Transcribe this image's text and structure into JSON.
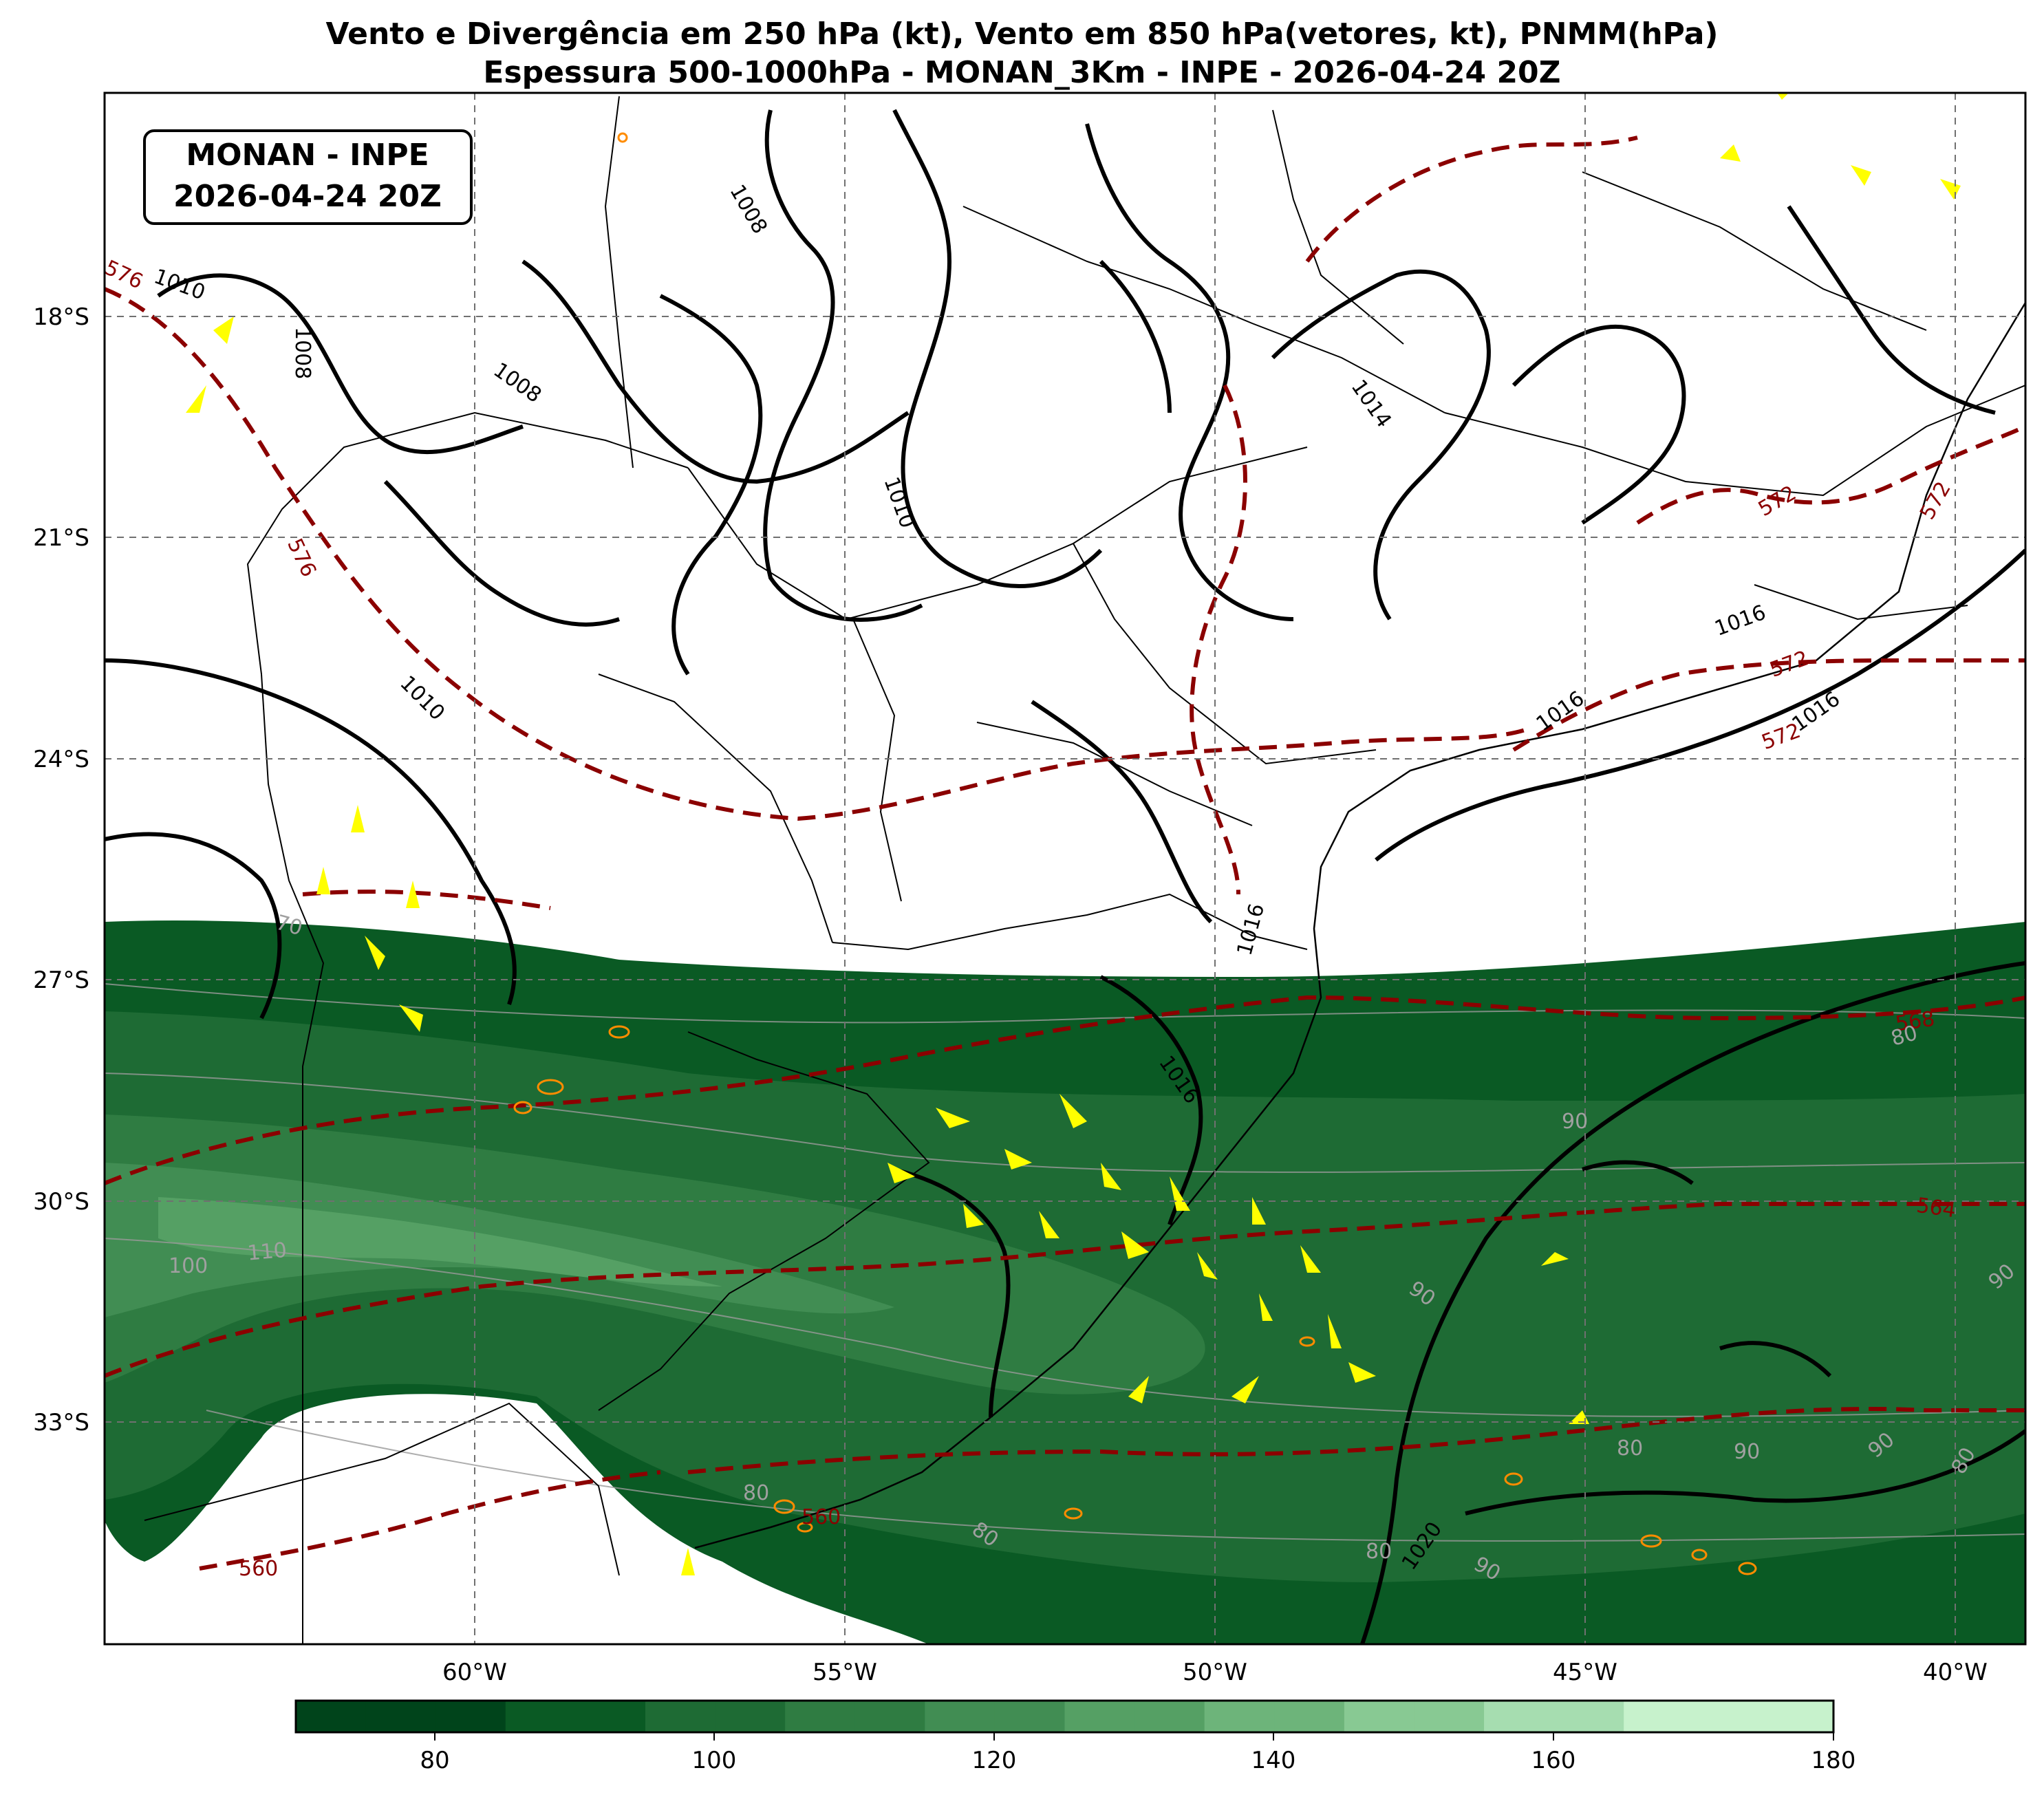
{
  "title": {
    "line1": "Vento e Divergência em 250 hPa (kt), Vento em 850 hPa(vetores, kt), PNMM(hPa)",
    "line2": "Espessura 500-1000hPa - MONAN_3Km - INPE - 2026-04-24 20Z"
  },
  "stamp": {
    "line1": "MONAN - INPE",
    "line2": "2026-04-24 20Z"
  },
  "lat_labels": [
    "18°S",
    "21°S",
    "24°S",
    "27°S",
    "30°S",
    "33°S"
  ],
  "lon_labels": [
    "60°W",
    "55°W",
    "50°W",
    "45°W",
    "40°W"
  ],
  "colorbar": {
    "ticks": [
      "80",
      "100",
      "120",
      "140",
      "160",
      "180"
    ],
    "colors": [
      "#00441b",
      "#0a5a24",
      "#1e6b34",
      "#2f7c42",
      "#418d53",
      "#55a064",
      "#6db47a",
      "#88c993",
      "#a6ddb0",
      "#c7f2cc"
    ]
  },
  "pressure_labels": [
    "1008",
    "1008",
    "1008",
    "1010",
    "1010",
    "1010",
    "1014",
    "1016",
    "1016",
    "1016",
    "1016",
    "1016",
    "1020"
  ],
  "thickness_labels": [
    "576",
    "576",
    "572",
    "572",
    "572",
    "572",
    "568",
    "564",
    "560",
    "560"
  ],
  "wind_labels": [
    "70",
    "80",
    "80",
    "80",
    "80",
    "80",
    "80",
    "90",
    "90",
    "90",
    "90",
    "90",
    "90",
    "100",
    "110"
  ],
  "colors": {
    "pressure": "#000000",
    "thickness": "#8b0000",
    "wind_arrow": "#ffff00",
    "divergence": "#ff8c00",
    "grid": "#707070"
  }
}
